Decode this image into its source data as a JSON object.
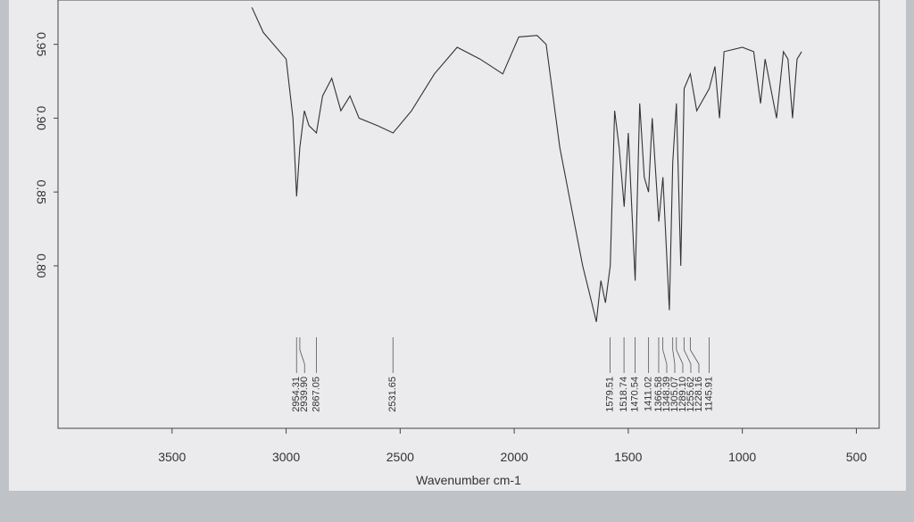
{
  "chart_data": {
    "type": "line",
    "x_label": "Wavenumber cm-1",
    "x": [
      3150,
      3100,
      3000,
      2970,
      2954,
      2940,
      2920,
      2900,
      2867,
      2840,
      2800,
      2760,
      2720,
      2680,
      2600,
      2531,
      2450,
      2350,
      2250,
      2150,
      2050,
      1980,
      1900,
      1860,
      1800,
      1700,
      1660,
      1640,
      1620,
      1600,
      1579,
      1560,
      1540,
      1518,
      1500,
      1470,
      1450,
      1430,
      1411,
      1395,
      1366,
      1348,
      1320,
      1305,
      1289,
      1270,
      1255,
      1228,
      1200,
      1145,
      1120,
      1100,
      1080,
      1000,
      950,
      920,
      900,
      850,
      820,
      800,
      780,
      760,
      740
    ],
    "series": [
      {
        "color": "#333333",
        "values": [
          0.975,
          0.958,
          0.94,
          0.9,
          0.847,
          0.88,
          0.905,
          0.895,
          0.89,
          0.915,
          0.927,
          0.905,
          0.915,
          0.9,
          0.895,
          0.89,
          0.905,
          0.93,
          0.948,
          0.94,
          0.93,
          0.955,
          0.956,
          0.95,
          0.88,
          0.8,
          0.775,
          0.762,
          0.79,
          0.775,
          0.8,
          0.905,
          0.88,
          0.84,
          0.89,
          0.79,
          0.91,
          0.86,
          0.85,
          0.9,
          0.83,
          0.86,
          0.77,
          0.87,
          0.91,
          0.8,
          0.92,
          0.93,
          0.905,
          0.92,
          0.935,
          0.9,
          0.945,
          0.948,
          0.945,
          0.91,
          0.94,
          0.9,
          0.945,
          0.94,
          0.9,
          0.94,
          0.945
        ]
      }
    ],
    "xlim": [
      4000,
      400
    ],
    "xticks": [
      3500,
      3000,
      2500,
      2000,
      1500,
      1000,
      500
    ],
    "ylim": [
      0.69,
      0.98
    ],
    "yticks": [
      {
        "value": 0.8,
        "label": "0.80"
      },
      0.85,
      {
        "value": 0.9,
        "label": "0.90"
      },
      0.95
    ],
    "peaks": [
      2954.31,
      {
        "value": 2939.9,
        "label": "2939.90"
      },
      2867.05,
      2531.65,
      1579.51,
      1518.74,
      1470.54,
      1411.02,
      1366.58,
      1348.39,
      1305.07,
      {
        "value": 1289.1,
        "label": "1289.10"
      },
      1255.62,
      1228.16,
      1145.91
    ]
  }
}
